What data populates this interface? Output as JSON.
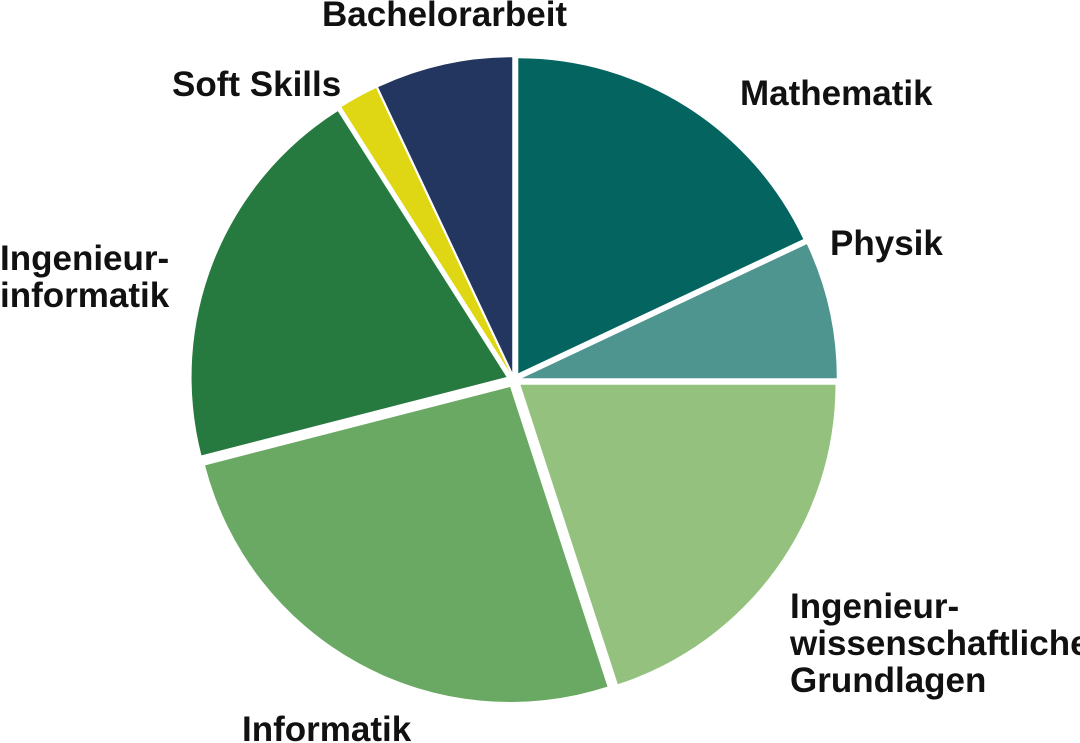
{
  "chart_data": {
    "type": "pie",
    "title": "",
    "start": "top, clockwise",
    "slices": [
      {
        "label": [
          "Mathematik"
        ],
        "value": 18,
        "color": "#04645f"
      },
      {
        "label": [
          "Physik"
        ],
        "value": 7,
        "color": "#4e9590"
      },
      {
        "label": [
          "Ingenieur-",
          "wissenschaftliche",
          "Grundlagen"
        ],
        "value": 20,
        "color": "#95c17f"
      },
      {
        "label": [
          "Informatik"
        ],
        "value": 26,
        "color": "#6aa963"
      },
      {
        "label": [
          "Ingenieur-",
          "informatik"
        ],
        "value": 20,
        "color": "#277a3f"
      },
      {
        "label": [
          "Soft Skills"
        ],
        "value": 2,
        "color": "#dfd614"
      },
      {
        "label": [
          "Bachelorarbeit"
        ],
        "value": 7,
        "color": "#22365f"
      }
    ]
  }
}
